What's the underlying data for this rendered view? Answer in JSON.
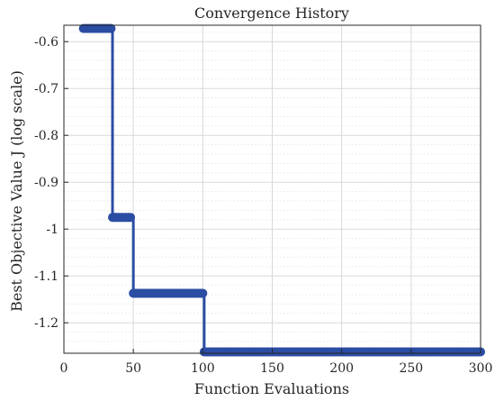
{
  "chart_data": {
    "type": "line",
    "title": "Convergence History",
    "xlabel": "Function Evaluations",
    "ylabel": "Best Objective Value J (log scale)",
    "xlim": [
      0,
      300
    ],
    "ylim": [
      -1.265,
      -0.565
    ],
    "xticks": [
      "0",
      "50",
      "100",
      "150",
      "200",
      "250",
      "300"
    ],
    "yticks": [
      "-0.6",
      "-0.7",
      "-0.8",
      "-0.9",
      "-1",
      "-1.1",
      "-1.2"
    ],
    "grid": true,
    "color": "#2b4da3",
    "series": [
      {
        "steps": [
          {
            "x_start": 14,
            "x_end": 34,
            "y": -0.572
          },
          {
            "x_start": 35,
            "x_end": 48,
            "y": -0.975
          },
          {
            "x_start": 50,
            "x_end": 100,
            "y": -1.137
          },
          {
            "x_start": 101,
            "x_end": 300,
            "y": -1.262
          }
        ]
      }
    ]
  }
}
